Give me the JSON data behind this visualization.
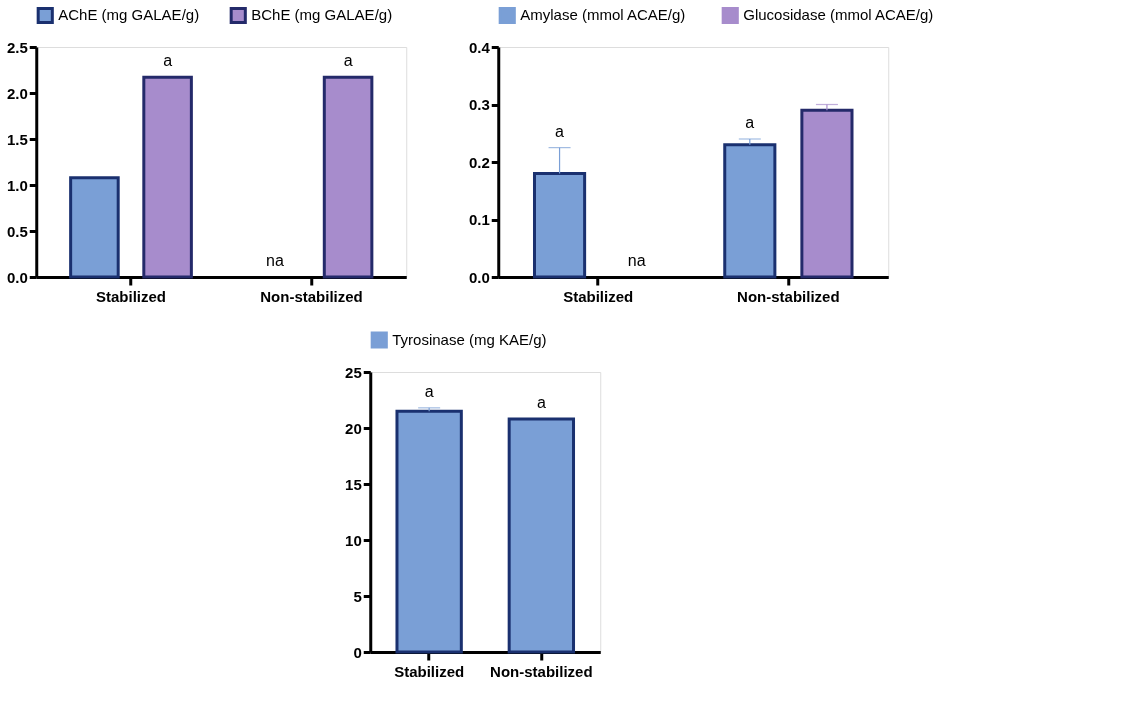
{
  "chart_data": [
    {
      "type": "bar",
      "categories": [
        "Stabilized",
        "Non-stabilized"
      ],
      "ylim": [
        0,
        2.5
      ],
      "yticks": [
        {
          "value": 0,
          "label": "0.0"
        },
        0.5,
        {
          "value": 1,
          "label": "1.0"
        },
        1.5,
        {
          "value": 2,
          "label": "2.0"
        },
        2.5
      ],
      "grid": false,
      "legend": "top",
      "series": [
        {
          "name": "AChE (mg GALAE/g)",
          "color": "#7a9fd6",
          "values": [
            1.08,
            null
          ],
          "value_labels": [
            null,
            "na"
          ]
        },
        {
          "name": "BChE (mg GALAE/g)",
          "color": "#a78ccc",
          "values": [
            2.17,
            2.17
          ],
          "value_labels": [
            "a",
            "a"
          ]
        }
      ]
    },
    {
      "type": "bar",
      "categories": [
        "Stabilized",
        "Non-stabilized"
      ],
      "ylim": [
        0,
        0.4
      ],
      "yticks": [
        {
          "value": 0,
          "label": "0.0"
        },
        0.1,
        0.2,
        0.3,
        0.4
      ],
      "grid": false,
      "legend": "top",
      "series": [
        {
          "name": "Amylase  (mmol ACAE/g)",
          "color": "#7a9fd6",
          "values": [
            0.18,
            0.23
          ],
          "errors": [
            [
              0.18,
              0.225
            ],
            [
              0.23,
              0.24
            ]
          ],
          "value_labels": [
            "a",
            "a"
          ]
        },
        {
          "name": "Glucosidase (mmol ACAE/g)",
          "color": "#a78ccc",
          "values": [
            null,
            0.29
          ],
          "errors": [
            null,
            [
              0.29,
              0.3
            ]
          ],
          "value_labels": [
            "na",
            null
          ]
        }
      ]
    },
    {
      "type": "bar",
      "categories": [
        "Stabilized",
        "Non-stabilized"
      ],
      "ylim": [
        0,
        25
      ],
      "yticks": [
        0,
        5,
        10,
        15,
        20,
        25
      ],
      "grid": false,
      "legend": "top",
      "series": [
        {
          "name": "Tyrosinase (mg KAE/g)",
          "color": "#7a9fd6",
          "values": [
            21.5,
            20.8
          ],
          "errors": [
            [
              21.5,
              21.8
            ],
            null
          ],
          "value_labels": [
            "a",
            "a"
          ]
        }
      ]
    }
  ]
}
